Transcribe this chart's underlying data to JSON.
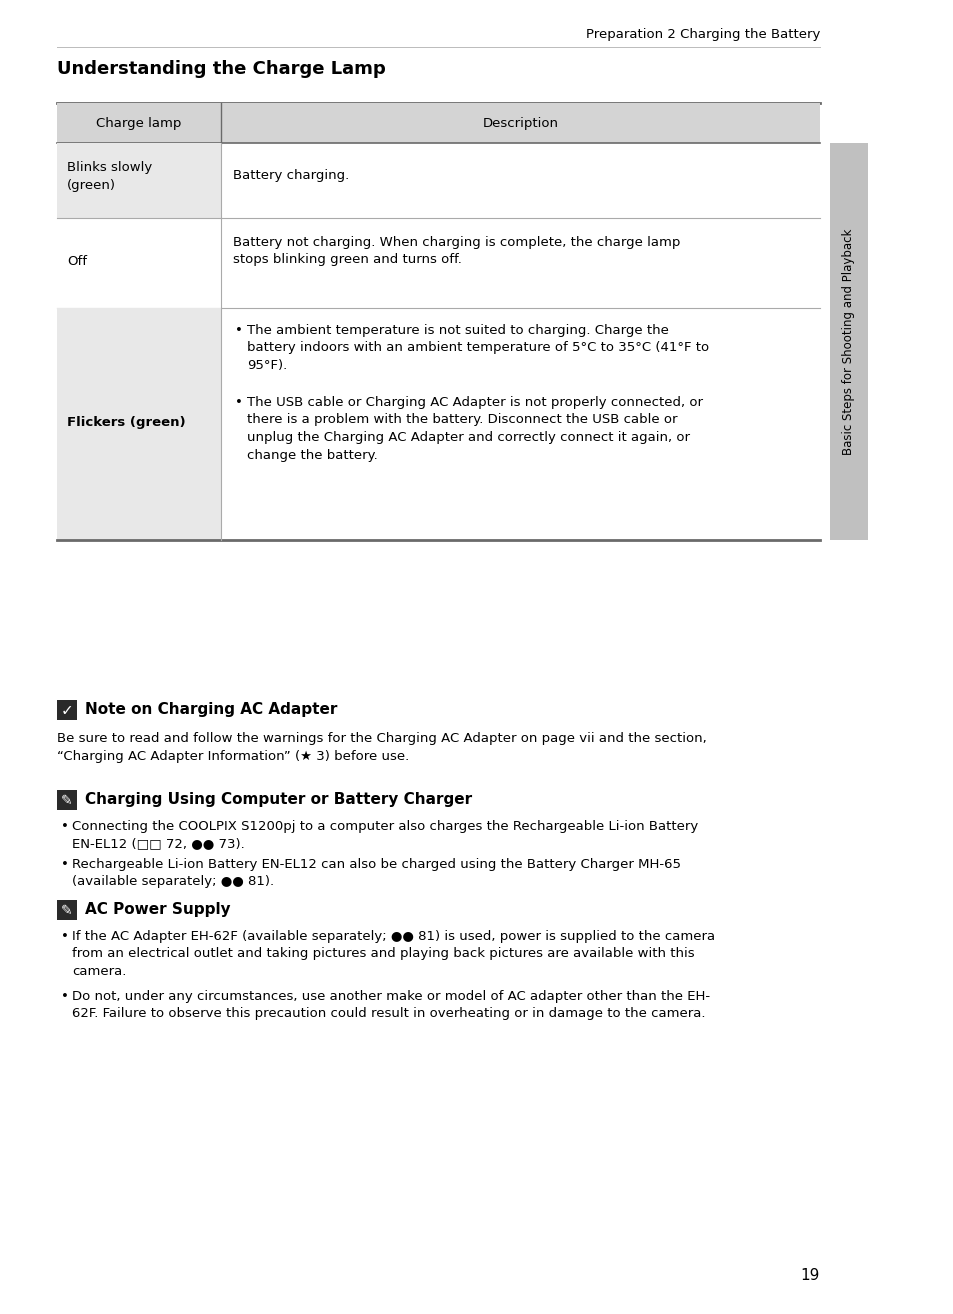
{
  "page_header": "Preparation 2 Charging the Battery",
  "section_title": "Understanding the Charge Lamp",
  "table_header": [
    "Charge lamp",
    "Description"
  ],
  "note_section": {
    "title": "Note on Charging AC Adapter",
    "body_line1": "Be sure to read and follow the warnings for the Charging AC Adapter on page vii and the section,",
    "body_line2": "“Charging AC Adapter Information” (★ 3) before use."
  },
  "charger_section": {
    "title": "Charging Using Computer or Battery Charger",
    "bullets": [
      "Connecting the COOLPIX S1200pj to a computer also charges the Rechargeable Li-ion Battery\nEN-EL12 (□□ 72, ●● 73).",
      "Rechargeable Li-ion Battery EN-EL12 can also be charged using the Battery Charger MH-65\n(available separately; ●● 81)."
    ]
  },
  "power_section": {
    "title": "AC Power Supply",
    "bullets": [
      "If the AC Adapter EH-62F (available separately; ●● 81) is used, power is supplied to the camera\nfrom an electrical outlet and taking pictures and playing back pictures are available with this\ncamera.",
      "Do not, under any circumstances, use another make or model of AC adapter other than the EH-\n62F. Failure to observe this precaution could result in overheating or in damage to the camera."
    ]
  },
  "page_number": "19",
  "sidebar_text": "Basic Steps for Shooting and Playback",
  "bg_color": "#ffffff",
  "header_bg": "#d4d4d4",
  "cell_bg_col1": "#e8e8e8",
  "table_border_dark": "#6a6a6a",
  "table_border_light": "#aaaaaa",
  "sidebar_bg": "#c0c0c0",
  "text_color": "#000000",
  "icon_bg_check": "#2a2a2a",
  "icon_bg_pencil": "#2a2a2a"
}
